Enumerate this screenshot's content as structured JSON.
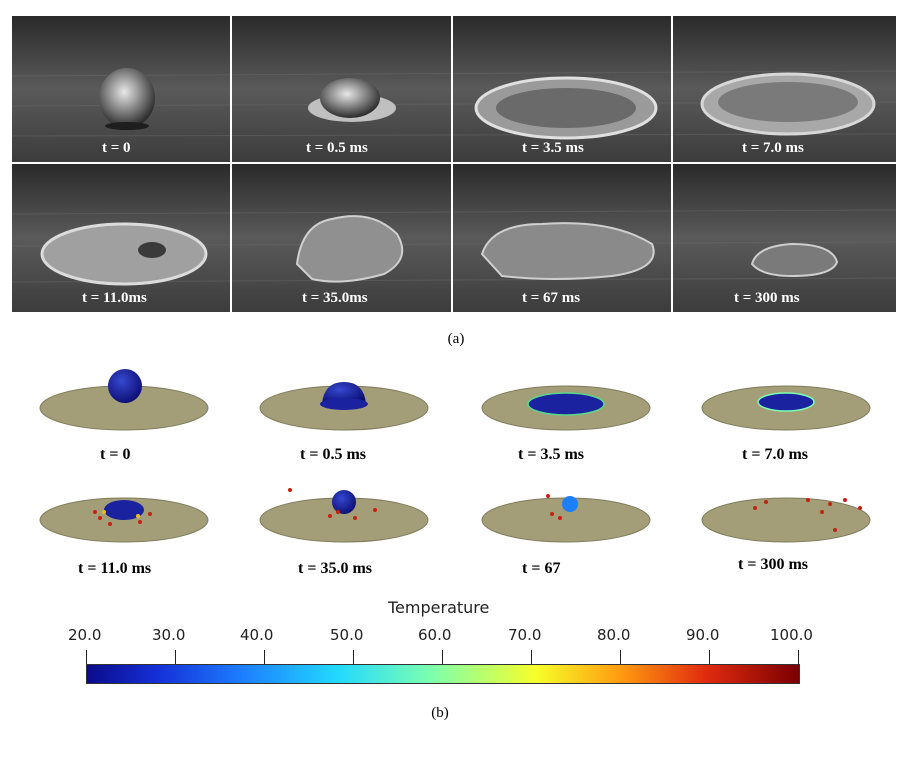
{
  "panel_a": {
    "caption": "(a)",
    "row1": [
      "t = 0",
      "t = 0.5 ms",
      "t = 3.5 ms",
      "t = 7.0 ms"
    ],
    "row2": [
      "t = 11.0ms",
      "t = 35.0ms",
      "t = 67 ms",
      "t = 300 ms"
    ]
  },
  "panel_b": {
    "caption": "(b)",
    "row1": [
      "t = 0",
      "t = 0.5 ms",
      "t = 3.5 ms",
      "t = 7.0 ms"
    ],
    "row2": [
      "t = 11.0 ms",
      "t = 35.0 ms",
      "t = 67",
      "t = 300 ms"
    ]
  },
  "colorbar": {
    "title": "Temperature",
    "ticks": [
      "20.0",
      "30.0",
      "40.0",
      "50.0",
      "60.0",
      "70.0",
      "80.0",
      "90.0",
      "100.0"
    ],
    "colors": {
      "low": "#0b0b8a",
      "mid": "#22d8ff",
      "high": "#7a0000"
    }
  }
}
